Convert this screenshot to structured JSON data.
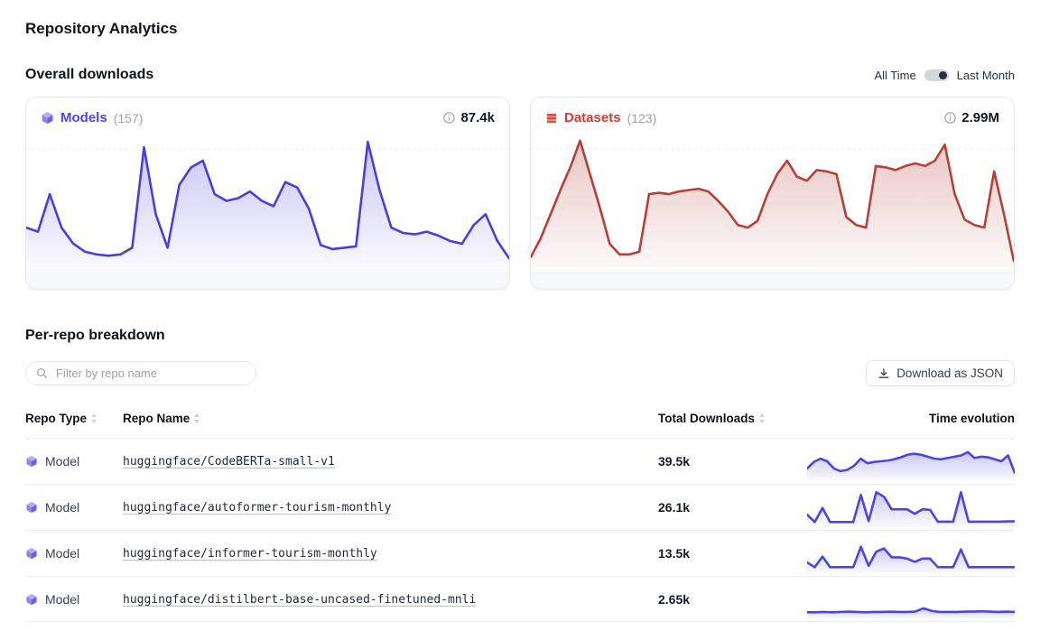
{
  "page": {
    "title": "Repository Analytics"
  },
  "overall": {
    "heading": "Overall downloads",
    "toggle": {
      "all_time": "All Time",
      "last_month": "Last Month",
      "selected": "Last Month"
    },
    "cards": [
      {
        "icon": "model-cube-icon",
        "label": "Models",
        "count": "(157)",
        "total": "87.4k",
        "accent": "#4f46e5",
        "line": "#4a3fd6",
        "points": [
          30,
          27,
          55,
          30,
          18,
          12,
          10,
          9,
          10,
          15,
          90,
          40,
          15,
          62,
          75,
          80,
          55,
          50,
          52,
          57,
          50,
          46,
          64,
          60,
          44,
          17,
          14,
          15,
          16,
          94,
          58,
          30,
          26,
          25,
          27,
          24,
          20,
          18,
          32,
          40,
          20,
          7
        ]
      },
      {
        "icon": "dataset-stack-icon",
        "label": "Datasets",
        "count": "(123)",
        "total": "2.99M",
        "accent": "#cf3e36",
        "line": "#b2423a",
        "points": [
          8,
          22,
          40,
          58,
          75,
          95,
          70,
          45,
          18,
          10,
          10,
          12,
          55,
          56,
          55,
          57,
          58,
          59,
          57,
          50,
          42,
          32,
          30,
          35,
          55,
          70,
          80,
          68,
          65,
          73,
          72,
          70,
          38,
          32,
          30,
          76,
          75,
          73,
          76,
          78,
          76,
          80,
          92,
          55,
          36,
          32,
          30,
          72,
          40,
          5
        ]
      }
    ]
  },
  "breakdown": {
    "heading": "Per-repo breakdown",
    "filter_placeholder": "Filter by repo name",
    "download_button": "Download as JSON",
    "columns": {
      "type": "Repo Type",
      "name": "Repo Name",
      "downloads": "Total Downloads",
      "evolution": "Time evolution"
    },
    "spark_line_color": "#4f45d9",
    "rows": [
      {
        "type": "Model",
        "name": "huggingface/CodeBERTa-small-v1",
        "downloads": "39.5k",
        "spark": [
          28,
          48,
          58,
          50,
          28,
          20,
          24,
          36,
          58,
          44,
          48,
          50,
          52,
          56,
          62,
          70,
          73,
          70,
          64,
          58,
          56,
          60,
          64,
          68,
          78,
          60,
          64,
          62,
          56,
          50,
          68,
          15
        ]
      },
      {
        "type": "Model",
        "name": "huggingface/autoformer-tourism-monthly",
        "downloads": "26.1k",
        "spark": [
          28,
          5,
          48,
          5,
          5,
          5,
          5,
          88,
          8,
          96,
          82,
          44,
          44,
          44,
          30,
          44,
          42,
          6,
          6,
          6,
          96,
          6,
          6,
          6,
          6,
          6,
          7,
          7
        ]
      },
      {
        "type": "Model",
        "name": "huggingface/informer-tourism-monthly",
        "downloads": "13.5k",
        "spark": [
          22,
          8,
          40,
          8,
          8,
          8,
          8,
          70,
          12,
          55,
          65,
          38,
          38,
          34,
          24,
          34,
          34,
          8,
          8,
          8,
          62,
          8,
          8,
          8,
          8,
          8,
          8,
          8
        ]
      },
      {
        "type": "Model",
        "name": "huggingface/distilbert-base-uncased-finetuned-mnli",
        "downloads": "2.65k",
        "spark": [
          8,
          8,
          9,
          8,
          9,
          10,
          9,
          8,
          9,
          9,
          10,
          9,
          9,
          10,
          20,
          12,
          9,
          9,
          9,
          10,
          10,
          11,
          10,
          9,
          10,
          9
        ]
      }
    ]
  }
}
